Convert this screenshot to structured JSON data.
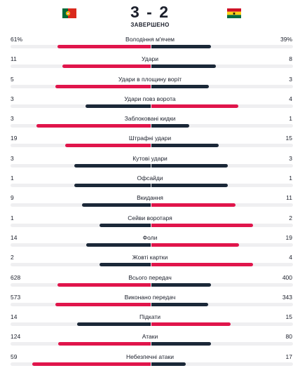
{
  "match": {
    "score": "3 - 2",
    "status": "ЗАВЕРШЕНО",
    "home_flag": "portugal-flag-icon",
    "away_flag": "ghana-flag-icon"
  },
  "colors": {
    "accent": "#e0154b",
    "dark": "#1b2838",
    "track": "#efeff1"
  },
  "stats": [
    {
      "label": "Володіння м'ячем",
      "home": "61%",
      "away": "39%",
      "home_val": 61,
      "away_val": 39,
      "home_leads": true
    },
    {
      "label": "Удари",
      "home": "11",
      "away": "8",
      "home_val": 11,
      "away_val": 8,
      "home_leads": true
    },
    {
      "label": "Удари в площину воріт",
      "home": "5",
      "away": "3",
      "home_val": 5,
      "away_val": 3,
      "home_leads": true
    },
    {
      "label": "Удари повз ворота",
      "home": "3",
      "away": "4",
      "home_val": 3,
      "away_val": 4,
      "home_leads": false
    },
    {
      "label": "Заблоковані кидки",
      "home": "3",
      "away": "1",
      "home_val": 3,
      "away_val": 1,
      "home_leads": true
    },
    {
      "label": "Штрафні удари",
      "home": "19",
      "away": "15",
      "home_val": 19,
      "away_val": 15,
      "home_leads": true
    },
    {
      "label": "Кутові удари",
      "home": "3",
      "away": "3",
      "home_val": 3,
      "away_val": 3,
      "home_leads": null
    },
    {
      "label": "Офсайди",
      "home": "1",
      "away": "1",
      "home_val": 1,
      "away_val": 1,
      "home_leads": null
    },
    {
      "label": "Вкидання",
      "home": "9",
      "away": "11",
      "home_val": 9,
      "away_val": 11,
      "home_leads": false
    },
    {
      "label": "Сейви воротаря",
      "home": "1",
      "away": "2",
      "home_val": 1,
      "away_val": 2,
      "home_leads": false
    },
    {
      "label": "Фоли",
      "home": "14",
      "away": "19",
      "home_val": 14,
      "away_val": 19,
      "home_leads": false
    },
    {
      "label": "Жовті картки",
      "home": "2",
      "away": "4",
      "home_val": 2,
      "away_val": 4,
      "home_leads": false
    },
    {
      "label": "Всього передач",
      "home": "628",
      "away": "400",
      "home_val": 628,
      "away_val": 400,
      "home_leads": true
    },
    {
      "label": "Виконано передач",
      "home": "573",
      "away": "343",
      "home_val": 573,
      "away_val": 343,
      "home_leads": true
    },
    {
      "label": "Підкати",
      "home": "14",
      "away": "15",
      "home_val": 14,
      "away_val": 15,
      "home_leads": false
    },
    {
      "label": "Атаки",
      "home": "124",
      "away": "80",
      "home_val": 124,
      "away_val": 80,
      "home_leads": true
    },
    {
      "label": "Небезпечні атаки",
      "home": "59",
      "away": "17",
      "home_val": 59,
      "away_val": 17,
      "home_leads": true
    }
  ]
}
